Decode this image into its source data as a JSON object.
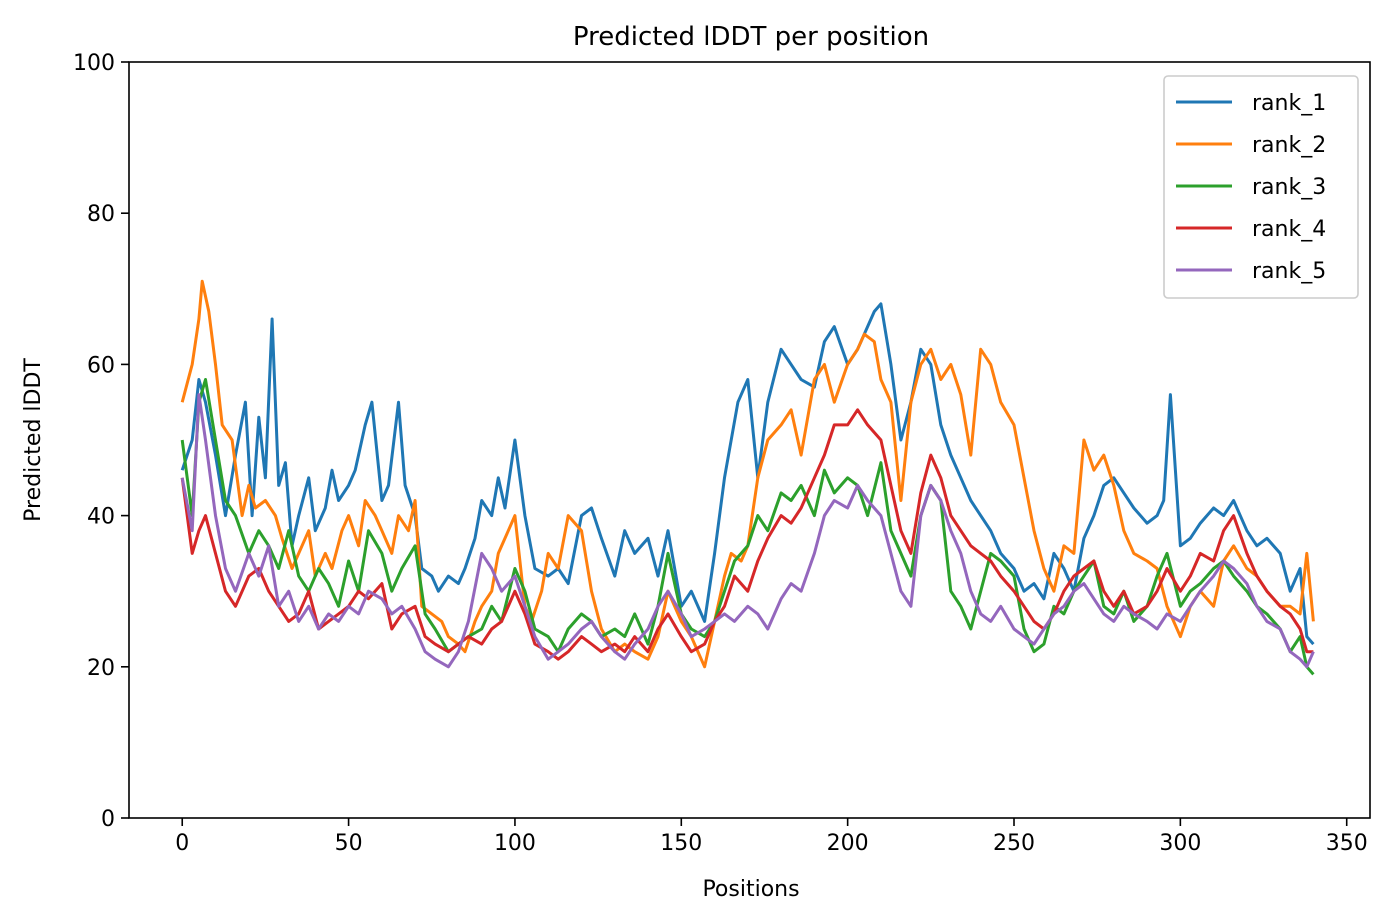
{
  "chart_data": {
    "type": "line",
    "title": "Predicted lDDT per position",
    "xlabel": "Positions",
    "ylabel": "Predicted lDDT",
    "xlim": [
      -16,
      357
    ],
    "ylim": [
      0,
      100
    ],
    "xticks": [
      0,
      50,
      100,
      150,
      200,
      250,
      300,
      350
    ],
    "yticks": [
      0,
      20,
      40,
      60,
      80,
      100
    ],
    "grid": false,
    "legend_position": "top-right",
    "series": [
      {
        "name": "rank_1",
        "color": "#1f77b4",
        "x": [
          0,
          3,
          5,
          7,
          10,
          13,
          16,
          19,
          21,
          23,
          25,
          27,
          29,
          31,
          33,
          35,
          38,
          40,
          43,
          45,
          47,
          50,
          52,
          55,
          57,
          60,
          62,
          65,
          67,
          70,
          72,
          75,
          77,
          80,
          83,
          85,
          88,
          90,
          93,
          95,
          97,
          100,
          103,
          106,
          110,
          113,
          116,
          120,
          123,
          126,
          130,
          133,
          136,
          140,
          143,
          146,
          150,
          153,
          157,
          160,
          163,
          165,
          167,
          170,
          173,
          176,
          180,
          183,
          186,
          190,
          193,
          196,
          200,
          203,
          206,
          208,
          210,
          213,
          216,
          219,
          222,
          225,
          228,
          231,
          234,
          237,
          240,
          243,
          246,
          250,
          253,
          256,
          259,
          262,
          265,
          268,
          271,
          274,
          277,
          280,
          283,
          286,
          290,
          293,
          295,
          297,
          300,
          303,
          306,
          310,
          313,
          316,
          320,
          323,
          326,
          330,
          333,
          336,
          338,
          340
        ],
        "y": [
          46,
          50,
          58,
          55,
          48,
          40,
          48,
          55,
          40,
          53,
          45,
          66,
          44,
          47,
          36,
          40,
          45,
          38,
          41,
          46,
          42,
          44,
          46,
          52,
          55,
          42,
          44,
          55,
          44,
          40,
          33,
          32,
          30,
          32,
          31,
          33,
          37,
          42,
          40,
          45,
          41,
          50,
          40,
          33,
          32,
          33,
          31,
          40,
          41,
          37,
          32,
          38,
          35,
          37,
          32,
          38,
          28,
          30,
          26,
          35,
          45,
          50,
          55,
          58,
          45,
          55,
          62,
          60,
          58,
          57,
          63,
          65,
          60,
          62,
          65,
          67,
          68,
          60,
          50,
          55,
          62,
          60,
          52,
          48,
          45,
          42,
          40,
          38,
          35,
          33,
          30,
          31,
          29,
          35,
          33,
          30,
          37,
          40,
          44,
          45,
          43,
          41,
          39,
          40,
          42,
          56,
          36,
          37,
          39,
          41,
          40,
          42,
          38,
          36,
          37,
          35,
          30,
          33,
          24,
          23
        ]
      },
      {
        "name": "rank_2",
        "color": "#ff7f0e",
        "x": [
          0,
          3,
          5,
          6,
          8,
          10,
          12,
          15,
          18,
          20,
          22,
          25,
          28,
          30,
          33,
          35,
          38,
          40,
          43,
          45,
          48,
          50,
          53,
          55,
          58,
          60,
          63,
          65,
          68,
          70,
          72,
          75,
          78,
          80,
          83,
          85,
          88,
          90,
          93,
          95,
          98,
          100,
          103,
          105,
          108,
          110,
          113,
          116,
          120,
          123,
          126,
          130,
          133,
          136,
          140,
          143,
          146,
          150,
          153,
          157,
          160,
          163,
          165,
          168,
          170,
          173,
          176,
          180,
          183,
          186,
          190,
          193,
          196,
          200,
          203,
          205,
          208,
          210,
          213,
          216,
          219,
          222,
          225,
          228,
          231,
          234,
          237,
          240,
          243,
          246,
          250,
          253,
          256,
          259,
          262,
          265,
          268,
          271,
          274,
          277,
          280,
          283,
          286,
          290,
          293,
          296,
          300,
          303,
          306,
          310,
          313,
          316,
          320,
          323,
          326,
          330,
          333,
          336,
          338,
          340
        ],
        "y": [
          55,
          60,
          66,
          71,
          67,
          60,
          52,
          50,
          40,
          44,
          41,
          42,
          40,
          37,
          33,
          35,
          38,
          32,
          35,
          33,
          38,
          40,
          36,
          42,
          40,
          38,
          35,
          40,
          38,
          42,
          28,
          27,
          26,
          24,
          23,
          22,
          26,
          28,
          30,
          35,
          38,
          40,
          28,
          26,
          30,
          35,
          33,
          40,
          38,
          30,
          25,
          22,
          23,
          22,
          21,
          24,
          30,
          26,
          24,
          20,
          26,
          32,
          35,
          34,
          36,
          45,
          50,
          52,
          54,
          48,
          58,
          60,
          55,
          60,
          62,
          64,
          63,
          58,
          55,
          42,
          55,
          60,
          62,
          58,
          60,
          56,
          48,
          62,
          60,
          55,
          52,
          45,
          38,
          33,
          30,
          36,
          35,
          50,
          46,
          48,
          44,
          38,
          35,
          34,
          33,
          28,
          24,
          28,
          30,
          28,
          34,
          36,
          33,
          32,
          30,
          28,
          28,
          27,
          35,
          26
        ]
      },
      {
        "name": "rank_3",
        "color": "#2ca02c",
        "x": [
          0,
          3,
          5,
          7,
          10,
          13,
          16,
          20,
          23,
          26,
          29,
          32,
          35,
          38,
          41,
          44,
          47,
          50,
          53,
          56,
          60,
          63,
          66,
          70,
          73,
          76,
          80,
          83,
          86,
          90,
          93,
          96,
          100,
          103,
          106,
          110,
          113,
          116,
          120,
          123,
          126,
          130,
          133,
          136,
          140,
          143,
          146,
          150,
          153,
          157,
          160,
          163,
          166,
          170,
          173,
          176,
          180,
          183,
          186,
          190,
          193,
          196,
          200,
          203,
          206,
          210,
          213,
          216,
          219,
          222,
          225,
          228,
          231,
          234,
          237,
          240,
          243,
          246,
          250,
          253,
          256,
          259,
          262,
          265,
          268,
          271,
          274,
          277,
          280,
          283,
          286,
          290,
          293,
          296,
          300,
          303,
          306,
          310,
          313,
          316,
          320,
          323,
          326,
          330,
          333,
          336,
          338,
          340
        ],
        "y": [
          50,
          40,
          55,
          58,
          50,
          42,
          40,
          35,
          38,
          36,
          33,
          38,
          32,
          30,
          33,
          31,
          28,
          34,
          30,
          38,
          35,
          30,
          33,
          36,
          27,
          25,
          22,
          23,
          24,
          25,
          28,
          26,
          33,
          30,
          25,
          24,
          22,
          25,
          27,
          26,
          24,
          25,
          24,
          27,
          23,
          28,
          35,
          27,
          25,
          24,
          26,
          30,
          34,
          36,
          40,
          38,
          43,
          42,
          44,
          40,
          46,
          43,
          45,
          44,
          40,
          47,
          38,
          35,
          32,
          40,
          44,
          42,
          30,
          28,
          25,
          30,
          35,
          34,
          32,
          25,
          22,
          23,
          28,
          27,
          30,
          32,
          34,
          28,
          27,
          30,
          26,
          28,
          32,
          35,
          28,
          30,
          31,
          33,
          34,
          32,
          30,
          28,
          27,
          25,
          22,
          24,
          20,
          19
        ]
      },
      {
        "name": "rank_4",
        "color": "#d62728",
        "x": [
          0,
          3,
          5,
          7,
          10,
          13,
          16,
          20,
          23,
          26,
          29,
          32,
          35,
          38,
          41,
          44,
          47,
          50,
          53,
          56,
          60,
          63,
          66,
          70,
          73,
          76,
          80,
          83,
          86,
          90,
          93,
          96,
          100,
          103,
          106,
          110,
          113,
          116,
          120,
          123,
          126,
          130,
          133,
          136,
          140,
          143,
          146,
          150,
          153,
          157,
          160,
          163,
          166,
          170,
          173,
          176,
          180,
          183,
          186,
          190,
          193,
          196,
          200,
          203,
          206,
          210,
          213,
          216,
          219,
          222,
          225,
          228,
          231,
          234,
          237,
          240,
          243,
          246,
          250,
          253,
          256,
          259,
          262,
          265,
          268,
          271,
          274,
          277,
          280,
          283,
          286,
          290,
          293,
          296,
          300,
          303,
          306,
          310,
          313,
          316,
          320,
          323,
          326,
          330,
          333,
          336,
          338,
          340
        ],
        "y": [
          45,
          35,
          38,
          40,
          35,
          30,
          28,
          32,
          33,
          30,
          28,
          26,
          27,
          30,
          25,
          26,
          27,
          28,
          30,
          29,
          31,
          25,
          27,
          28,
          24,
          23,
          22,
          23,
          24,
          23,
          25,
          26,
          30,
          27,
          23,
          22,
          21,
          22,
          24,
          23,
          22,
          23,
          22,
          24,
          22,
          25,
          27,
          24,
          22,
          23,
          26,
          28,
          32,
          30,
          34,
          37,
          40,
          39,
          41,
          45,
          48,
          52,
          52,
          54,
          52,
          50,
          44,
          38,
          35,
          43,
          48,
          45,
          40,
          38,
          36,
          35,
          34,
          32,
          30,
          28,
          26,
          25,
          27,
          30,
          32,
          33,
          34,
          30,
          28,
          30,
          27,
          28,
          30,
          33,
          30,
          32,
          35,
          34,
          38,
          40,
          35,
          32,
          30,
          28,
          27,
          25,
          22,
          22
        ]
      },
      {
        "name": "rank_5",
        "color": "#9467bd",
        "x": [
          0,
          3,
          5,
          7,
          10,
          13,
          16,
          20,
          23,
          26,
          29,
          32,
          35,
          38,
          41,
          44,
          47,
          50,
          53,
          56,
          60,
          63,
          66,
          70,
          73,
          76,
          80,
          83,
          86,
          90,
          93,
          96,
          100,
          103,
          106,
          110,
          113,
          116,
          120,
          123,
          126,
          130,
          133,
          136,
          140,
          143,
          146,
          150,
          153,
          157,
          160,
          163,
          166,
          170,
          173,
          176,
          180,
          183,
          186,
          190,
          193,
          196,
          200,
          203,
          206,
          210,
          213,
          216,
          219,
          222,
          225,
          228,
          231,
          234,
          237,
          240,
          243,
          246,
          250,
          253,
          256,
          259,
          262,
          265,
          268,
          271,
          274,
          277,
          280,
          283,
          286,
          290,
          293,
          296,
          300,
          303,
          306,
          310,
          313,
          316,
          320,
          323,
          326,
          330,
          333,
          336,
          338,
          340
        ],
        "y": [
          45,
          38,
          56,
          50,
          40,
          33,
          30,
          35,
          32,
          36,
          28,
          30,
          26,
          28,
          25,
          27,
          26,
          28,
          27,
          30,
          29,
          27,
          28,
          25,
          22,
          21,
          20,
          22,
          26,
          35,
          33,
          30,
          32,
          28,
          24,
          21,
          22,
          23,
          25,
          26,
          24,
          22,
          21,
          23,
          25,
          28,
          30,
          27,
          24,
          25,
          26,
          27,
          26,
          28,
          27,
          25,
          29,
          31,
          30,
          35,
          40,
          42,
          41,
          44,
          42,
          40,
          35,
          30,
          28,
          40,
          44,
          42,
          38,
          35,
          30,
          27,
          26,
          28,
          25,
          24,
          23,
          25,
          27,
          28,
          30,
          31,
          29,
          27,
          26,
          28,
          27,
          26,
          25,
          27,
          26,
          28,
          30,
          32,
          34,
          33,
          31,
          28,
          26,
          25,
          22,
          21,
          20,
          22
        ]
      }
    ]
  }
}
